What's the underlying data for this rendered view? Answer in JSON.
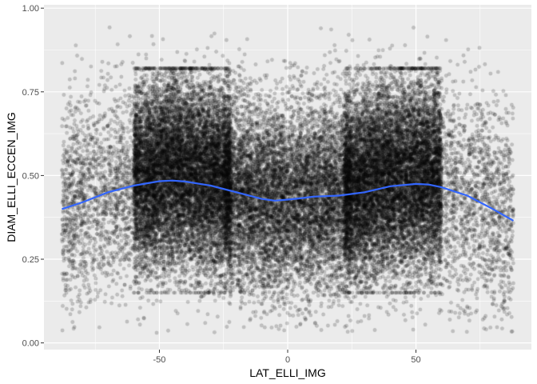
{
  "chart_data": {
    "type": "scatter",
    "title": "",
    "xlabel": "LAT_ELLI_IMG",
    "ylabel": "DIAM_ELLI_ECCEN_IMG",
    "xlim": [
      -95,
      95
    ],
    "ylim": [
      -0.02,
      1.01
    ],
    "x_ticks": [
      -50,
      0,
      50
    ],
    "x_tick_labels": [
      "-50",
      "0",
      "50"
    ],
    "y_ticks": [
      0.0,
      0.25,
      0.5,
      0.75,
      1.0
    ],
    "y_tick_labels": [
      "0.00",
      "0.25",
      "0.50",
      "0.75",
      "1.00"
    ],
    "grid": true,
    "panel_background": "#ebebeb",
    "grid_color": "#ffffff",
    "point_color": "#000000",
    "point_alpha": 0.18,
    "scatter_summary": {
      "x_range": [
        -88,
        88
      ],
      "y_range": [
        0.03,
        0.97
      ],
      "dense_regions": [
        {
          "x_range": [
            -60,
            -22
          ],
          "y_range": [
            0.15,
            0.82
          ]
        },
        {
          "x_range": [
            22,
            60
          ],
          "y_range": [
            0.15,
            0.82
          ]
        }
      ]
    },
    "smooth": {
      "name": "",
      "color": "#3366ff",
      "x": [
        -88,
        -80,
        -70,
        -60,
        -50,
        -45,
        -40,
        -30,
        -20,
        -10,
        -5,
        0,
        5,
        10,
        20,
        30,
        40,
        50,
        55,
        60,
        70,
        80,
        88
      ],
      "y": [
        0.4,
        0.42,
        0.45,
        0.47,
        0.483,
        0.485,
        0.482,
        0.47,
        0.45,
        0.43,
        0.425,
        0.428,
        0.432,
        0.437,
        0.44,
        0.45,
        0.468,
        0.475,
        0.473,
        0.465,
        0.44,
        0.4,
        0.365
      ]
    }
  }
}
